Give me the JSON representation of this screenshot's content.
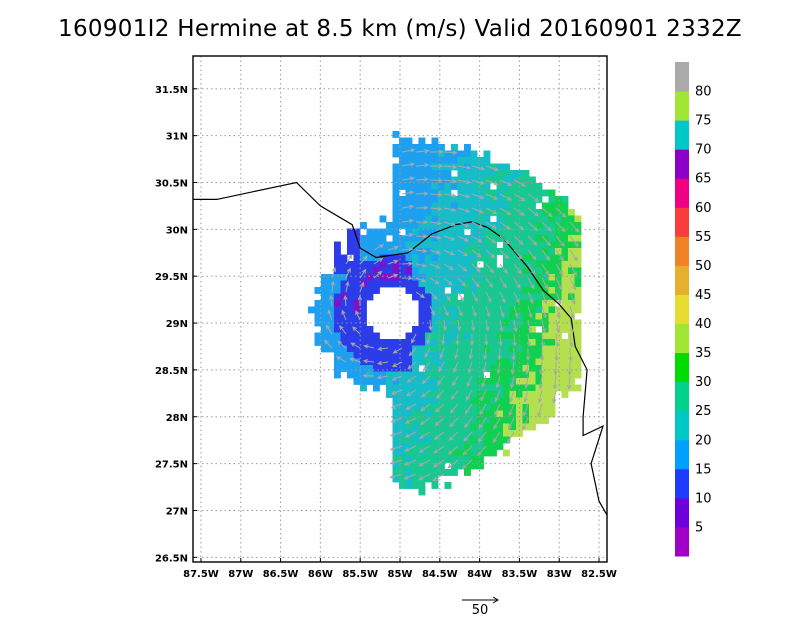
{
  "title": "160901I2 Hermine at 8.5 km (m/s) Valid 20160901 2332Z",
  "map": {
    "lon_range": [
      -87.6,
      -82.4
    ],
    "lat_range": [
      26.45,
      31.85
    ],
    "lat_labels": [
      {
        "lat": 31.5,
        "text": "31.5N"
      },
      {
        "lat": 31.0,
        "text": "31N"
      },
      {
        "lat": 30.5,
        "text": "30.5N"
      },
      {
        "lat": 30.0,
        "text": "30N"
      },
      {
        "lat": 29.5,
        "text": "29.5N"
      },
      {
        "lat": 29.0,
        "text": "29N"
      },
      {
        "lat": 28.5,
        "text": "28.5N"
      },
      {
        "lat": 28.0,
        "text": "28N"
      },
      {
        "lat": 27.5,
        "text": "27.5N"
      },
      {
        "lat": 27.0,
        "text": "27N"
      },
      {
        "lat": 26.5,
        "text": "26.5N"
      }
    ],
    "lon_labels": [
      {
        "lon": -87.5,
        "text": "87.5W"
      },
      {
        "lon": -87.0,
        "text": "87W"
      },
      {
        "lon": -86.5,
        "text": "86.5W"
      },
      {
        "lon": -86.0,
        "text": "86W"
      },
      {
        "lon": -85.5,
        "text": "85.5W"
      },
      {
        "lon": -85.0,
        "text": "85W"
      },
      {
        "lon": -84.5,
        "text": "84.5W"
      },
      {
        "lon": -84.0,
        "text": "84W"
      },
      {
        "lon": -83.5,
        "text": "83.5W"
      },
      {
        "lon": -83.0,
        "text": "83W"
      },
      {
        "lon": -82.5,
        "text": "82.5W"
      }
    ],
    "grid": "dotted",
    "center": {
      "lon": -85.1,
      "lat": 29.1
    },
    "coastline": [
      [
        -87.6,
        30.32
      ],
      [
        -87.3,
        30.32
      ],
      [
        -86.3,
        30.5
      ],
      [
        -86.0,
        30.25
      ],
      [
        -85.6,
        30.05
      ],
      [
        -85.5,
        29.8
      ],
      [
        -85.3,
        29.7
      ],
      [
        -84.9,
        29.75
      ],
      [
        -84.6,
        29.95
      ],
      [
        -84.3,
        30.05
      ],
      [
        -84.1,
        30.08
      ],
      [
        -83.9,
        30.02
      ],
      [
        -83.7,
        29.9
      ],
      [
        -83.4,
        29.6
      ],
      [
        -83.2,
        29.35
      ],
      [
        -83.0,
        29.2
      ],
      [
        -82.85,
        29.05
      ],
      [
        -82.8,
        28.75
      ],
      [
        -82.65,
        28.5
      ],
      [
        -82.7,
        28.0
      ],
      [
        -82.7,
        27.8
      ],
      [
        -82.45,
        27.9
      ],
      [
        -82.6,
        27.5
      ],
      [
        -82.5,
        27.1
      ],
      [
        -82.4,
        26.95
      ]
    ],
    "reference_vector": {
      "label": "50",
      "value": 50
    }
  },
  "colorbar": {
    "labels": [
      "5",
      "10",
      "15",
      "20",
      "25",
      "30",
      "35",
      "40",
      "45",
      "50",
      "55",
      "60",
      "65",
      "70",
      "75",
      "80"
    ],
    "colors": [
      "#a000c8",
      "#6e00dc",
      "#1e3cff",
      "#00a0ff",
      "#00c8c8",
      "#00d28c",
      "#00dc00",
      "#a0e632",
      "#e6dc32",
      "#e6af2d",
      "#f08228",
      "#fa3c3c",
      "#f00082",
      "#8c00c8",
      "#00c8c8",
      "#a0e632",
      "#aaaaaa"
    ]
  },
  "colors": {
    "grid": "#9a9a9a",
    "coast": "#000000",
    "vector": "#a8a8a8",
    "bands": {
      "inner": "#2c3ce8",
      "core": "#8010c8",
      "mid": "#1ea0f0",
      "outer": "#16bcc8",
      "strong": "#18c890",
      "peak": "#10d050",
      "max": "#b4e050"
    }
  }
}
